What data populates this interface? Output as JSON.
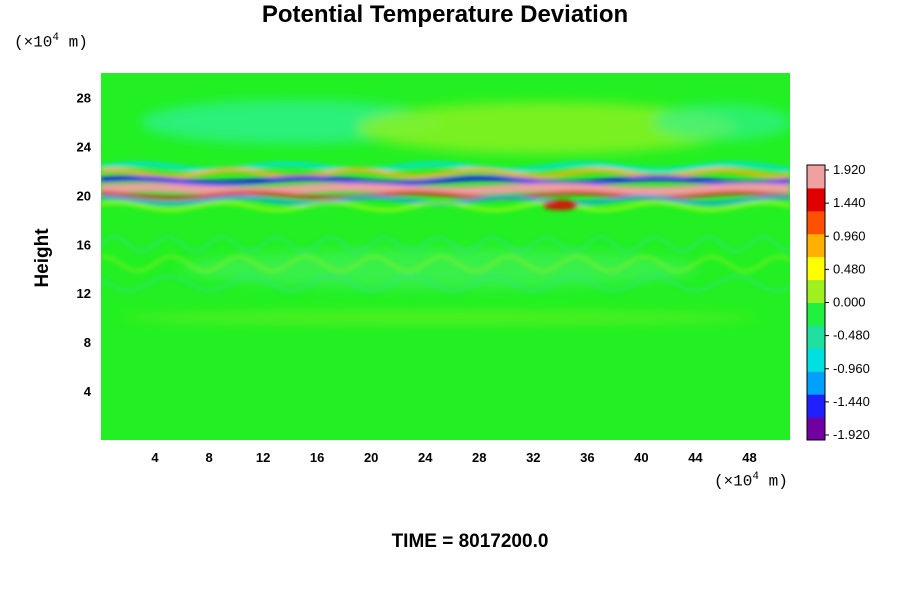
{
  "chart_data": {
    "type": "heatmap",
    "title": "Potential Temperature Deviation",
    "ylabel": "Height",
    "xlabel": "",
    "x_unit": {
      "prefix": "(×10",
      "exp": "4",
      "suffix": " m)"
    },
    "y_unit": {
      "prefix": "(×10",
      "exp": "4",
      "suffix": " m)"
    },
    "xlim": [
      0,
      51
    ],
    "ylim": [
      0,
      30
    ],
    "x_ticks": [
      4,
      8,
      12,
      16,
      20,
      24,
      28,
      32,
      36,
      40,
      44,
      48
    ],
    "y_ticks": [
      4,
      8,
      12,
      16,
      20,
      24,
      28
    ],
    "colorbar": {
      "range": [
        -1.92,
        1.92
      ],
      "labels": [
        "1.920",
        "1.440",
        "0.960",
        "0.480",
        "0.000",
        "-0.480",
        "-0.960",
        "-1.440",
        "-1.920"
      ],
      "colors": [
        "#7000a0",
        "#2020ff",
        "#00a0ff",
        "#00e0e0",
        "#20e0a0",
        "#20f040",
        "#a0f020",
        "#ffff00",
        "#ffb000",
        "#ff5000",
        "#e00000",
        "#f0a0a0"
      ]
    },
    "features": [
      {
        "y": 20.5,
        "value": 1.92,
        "description_band": "positive"
      },
      {
        "y": 21.2,
        "value": -1.6,
        "description_band": "negative"
      },
      {
        "y": 19.6,
        "value": -0.9,
        "description_band": "negative"
      }
    ],
    "footer": "TIME = 8017200.0"
  }
}
